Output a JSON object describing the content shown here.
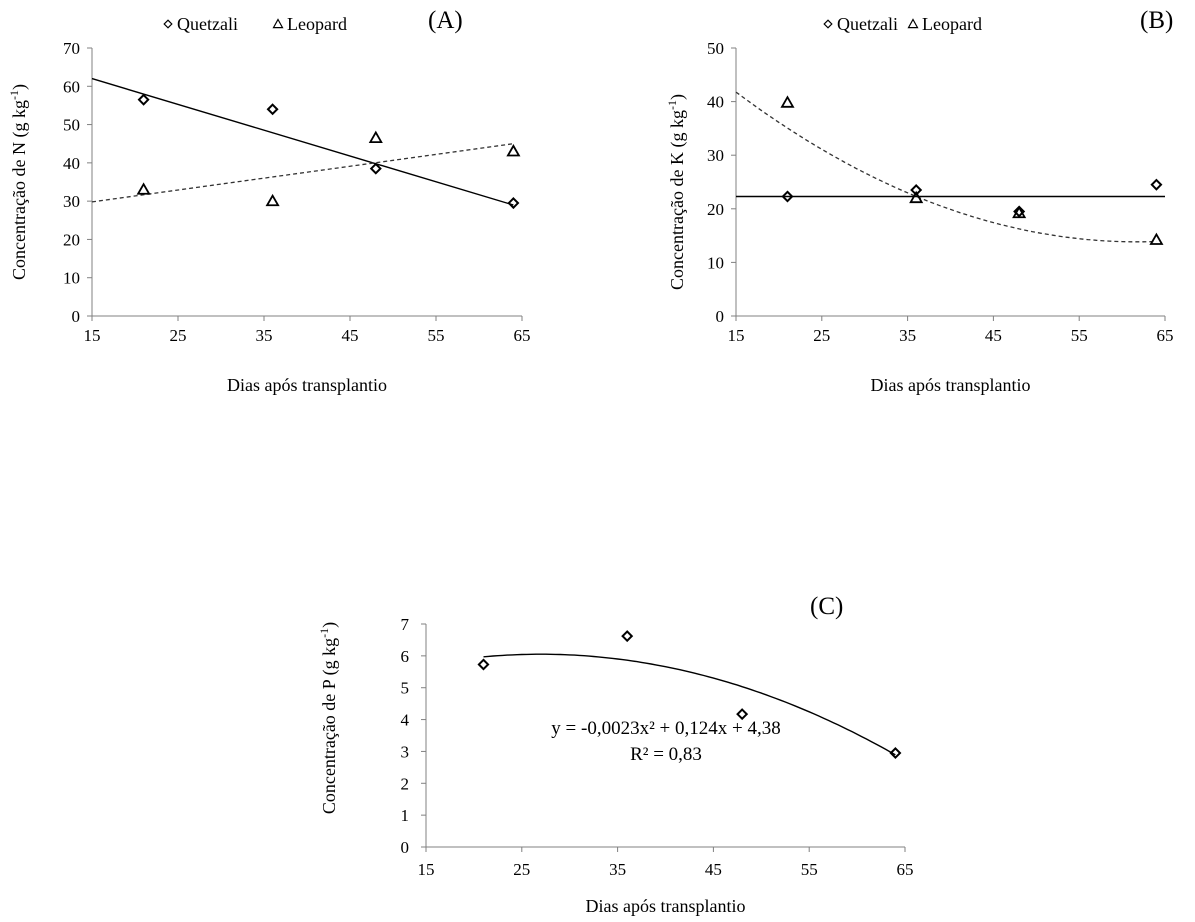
{
  "chart_data": [
    {
      "type": "scatter",
      "panel_label": "(A)",
      "legend": [
        "Quetzali",
        "Leopard"
      ],
      "xlabel": "Dias após transplantio",
      "ylabel_main": "Concentração de N (g kg",
      "ylabel_sup": "-1",
      "ylabel_close": ")",
      "xlim": [
        15,
        65
      ],
      "ylim": [
        0,
        70
      ],
      "xticks": [
        15,
        25,
        35,
        45,
        55,
        65
      ],
      "yticks": [
        0,
        10,
        20,
        30,
        40,
        50,
        60,
        70
      ],
      "series": [
        {
          "name": "Quetzali",
          "marker": "diamond",
          "x": [
            21,
            36,
            48,
            64
          ],
          "y": [
            56.5,
            54,
            38.5,
            29.5
          ],
          "trend": {
            "kind": "linear",
            "style": "solid",
            "x": [
              15,
              64
            ],
            "y": [
              62,
              29
            ]
          }
        },
        {
          "name": "Leopard",
          "marker": "triangle",
          "x": [
            21,
            36,
            48,
            64
          ],
          "y": [
            33,
            30,
            46.5,
            43
          ],
          "trend": {
            "kind": "linear",
            "style": "dashed",
            "x": [
              15,
              64
            ],
            "y": [
              29.8,
              45
            ]
          }
        }
      ]
    },
    {
      "type": "scatter",
      "panel_label": "(B)",
      "legend": [
        "Quetzali",
        "Leopard"
      ],
      "xlabel": "Dias após transplantio",
      "ylabel_main": "Concentração de K (g kg",
      "ylabel_sup": "-1",
      "ylabel_close": ")",
      "xlim": [
        15,
        65
      ],
      "ylim": [
        0,
        50
      ],
      "xticks": [
        15,
        25,
        35,
        45,
        55,
        65
      ],
      "yticks": [
        0,
        10,
        20,
        30,
        40,
        50
      ],
      "series": [
        {
          "name": "Quetzali",
          "marker": "diamond",
          "x": [
            21,
            36,
            48,
            64
          ],
          "y": [
            22.3,
            23.5,
            19.5,
            24.5
          ],
          "trend": {
            "kind": "constant",
            "style": "solid",
            "x": [
              15,
              65
            ],
            "y": [
              22.3,
              22.3
            ]
          }
        },
        {
          "name": "Leopard",
          "marker": "triangle",
          "x": [
            21,
            36,
            48,
            64
          ],
          "y": [
            39.8,
            22,
            19.2,
            14.2
          ],
          "trend": {
            "kind": "quadratic",
            "style": "dashed",
            "x": [
              15,
              64
            ],
            "coef": [
              0.0128,
              -1.58,
              62.6
            ]
          }
        }
      ]
    },
    {
      "type": "scatter",
      "panel_label": "(C)",
      "xlabel": "Dias após transplantio",
      "ylabel_main": "Concentração de P (g kg",
      "ylabel_sup": "-1",
      "ylabel_close": ")",
      "xlim": [
        15,
        65
      ],
      "ylim": [
        0,
        7
      ],
      "xticks": [
        15,
        25,
        35,
        45,
        55,
        65
      ],
      "yticks": [
        0,
        1,
        2,
        3,
        4,
        5,
        6,
        7
      ],
      "equation": "y = -0,0023x² + 0,124x + 4,38",
      "r2": "R² = 0,83",
      "series": [
        {
          "marker": "diamond",
          "x": [
            21,
            36,
            48,
            64
          ],
          "y": [
            5.73,
            6.62,
            4.17,
            2.95
          ],
          "trend": {
            "kind": "quadratic",
            "style": "solid",
            "x": [
              21,
              64
            ],
            "coef": [
              -0.0023,
              0.124,
              4.38
            ]
          }
        }
      ]
    }
  ]
}
